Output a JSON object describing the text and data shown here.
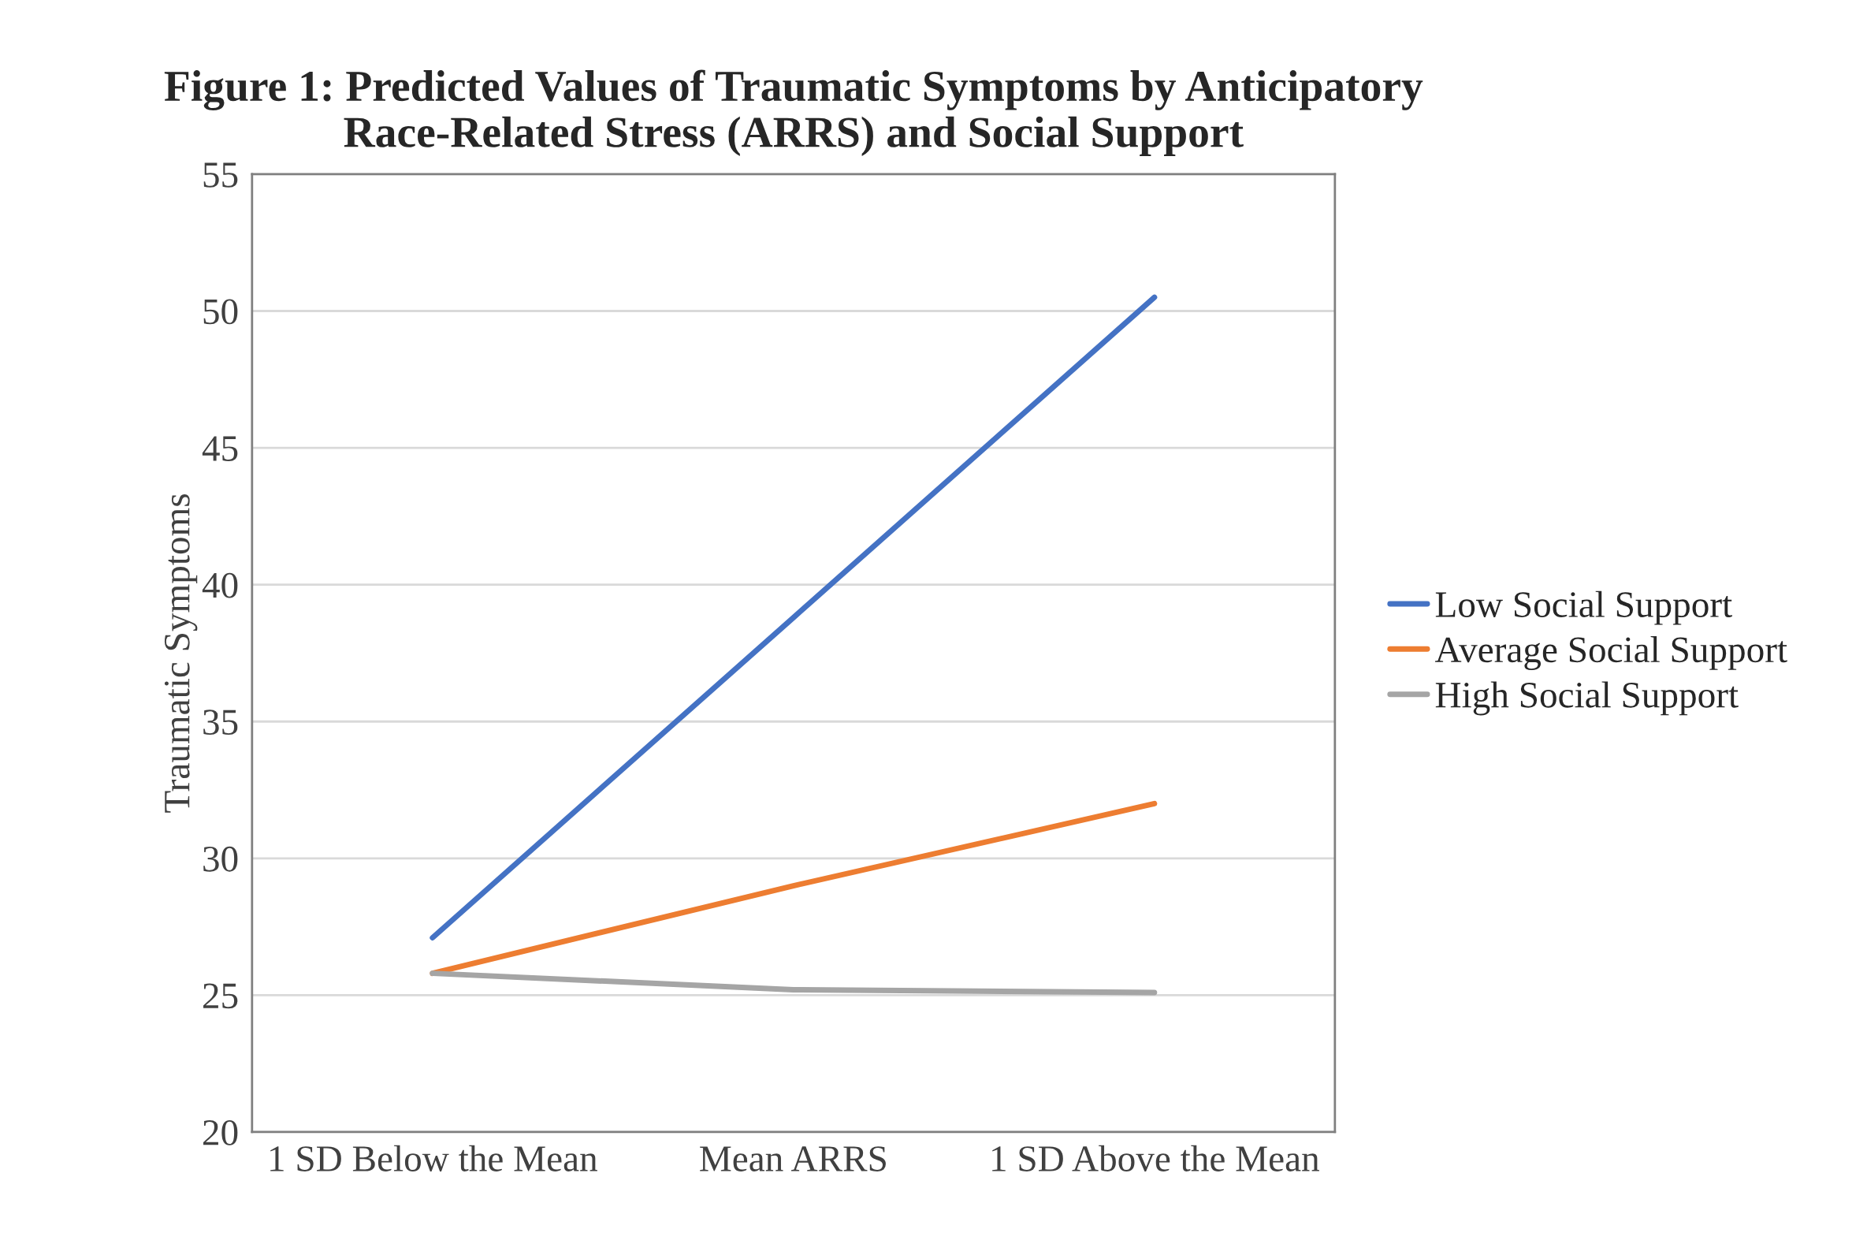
{
  "chart_data": {
    "type": "line",
    "title": "Figure 1: Predicted Values of Traumatic Symptoms by Anticipatory\nRace-Related Stress (ARRS) and Social Support",
    "ylabel": "Traumatic Symptoms",
    "categories": [
      "1 SD Below the Mean",
      "Mean ARRS",
      "1 SD Above the Mean"
    ],
    "series": [
      {
        "name": "Low Social Support",
        "color": "#4472c4",
        "values": [
          27.1,
          38.8,
          50.5
        ]
      },
      {
        "name": "Average Social Support",
        "color": "#ed7d31",
        "values": [
          25.8,
          29.0,
          32.0
        ]
      },
      {
        "name": "High Social Support",
        "color": "#a5a5a5",
        "values": [
          25.8,
          25.2,
          25.1
        ]
      }
    ],
    "ylim": [
      20,
      55
    ],
    "yticks": [
      20,
      25,
      30,
      35,
      40,
      45,
      50,
      55
    ],
    "grid": "y",
    "legend": "right",
    "marker": "none",
    "line_style": "solid"
  }
}
